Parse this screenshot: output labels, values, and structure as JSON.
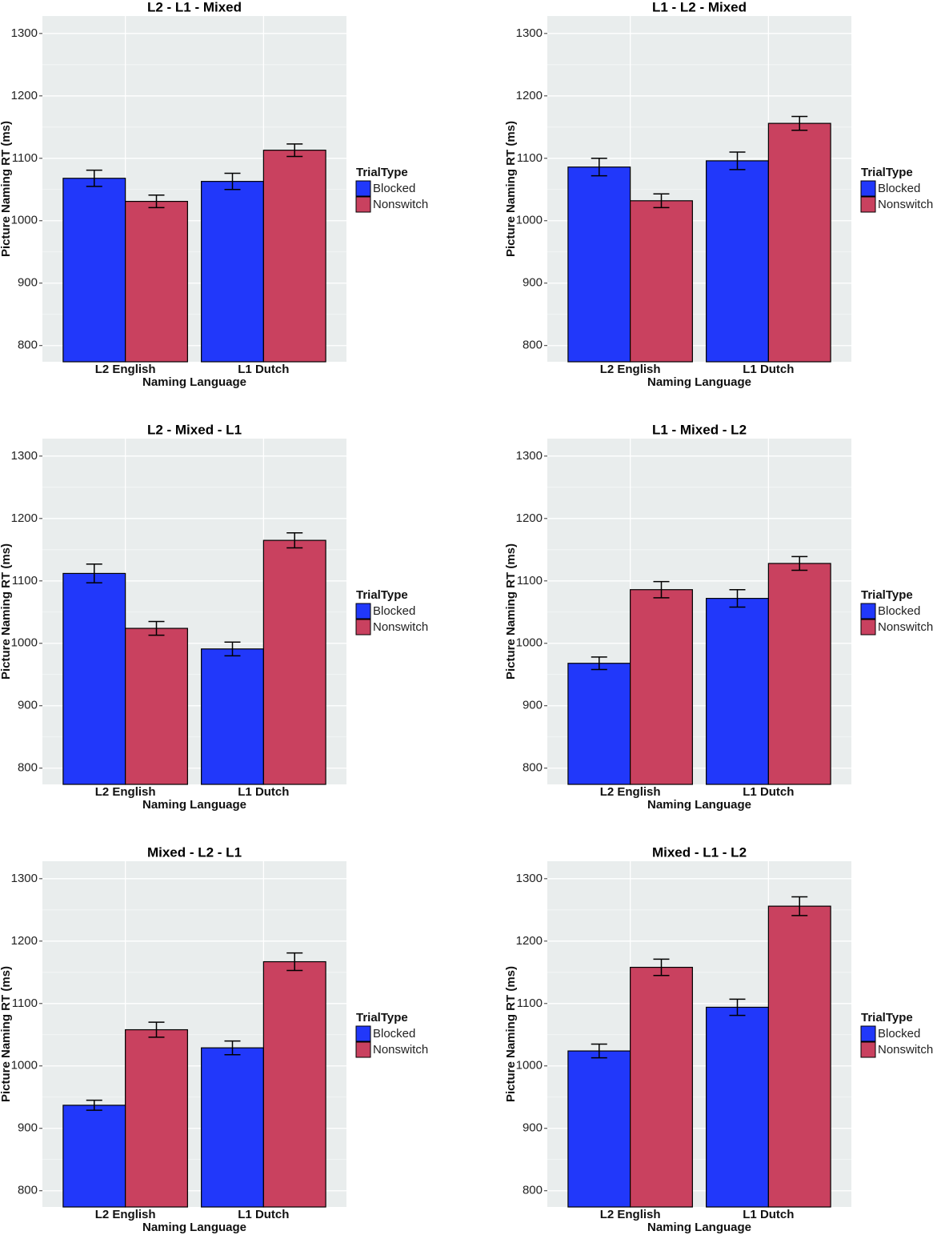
{
  "chart_data": [
    {
      "type": "bar",
      "title": "L2 - L1 - Mixed",
      "x_label": "Naming Language",
      "y_label": "Picture Naming RT (ms)",
      "legend_title": "TrialType",
      "categories": [
        "L2 English",
        "L1 Dutch"
      ],
      "series": [
        {
          "name": "Blocked",
          "color": "#2138fa",
          "values": [
            1068,
            1063
          ],
          "errors": [
            13,
            13
          ]
        },
        {
          "name": "Nonswitch",
          "color": "#c9415f",
          "values": [
            1031,
            1113
          ],
          "errors": [
            10,
            10
          ]
        }
      ],
      "ylim": [
        774,
        1328
      ],
      "yticks": [
        800,
        900,
        1000,
        1100,
        1200,
        1300
      ],
      "grid": true
    },
    {
      "type": "bar",
      "title": "L1 - L2 - Mixed",
      "x_label": "Naming Language",
      "y_label": "Picture Naming RT (ms)",
      "legend_title": "TrialType",
      "categories": [
        "L2 English",
        "L1 Dutch"
      ],
      "series": [
        {
          "name": "Blocked",
          "color": "#2138fa",
          "values": [
            1086,
            1096
          ],
          "errors": [
            14,
            14
          ]
        },
        {
          "name": "Nonswitch",
          "color": "#c9415f",
          "values": [
            1032,
            1156
          ],
          "errors": [
            11,
            11
          ]
        }
      ],
      "ylim": [
        774,
        1328
      ],
      "yticks": [
        800,
        900,
        1000,
        1100,
        1200,
        1300
      ],
      "grid": true
    },
    {
      "type": "bar",
      "title": "L2 - Mixed - L1",
      "x_label": "Naming Language",
      "y_label": "Picture Naming RT (ms)",
      "legend_title": "TrialType",
      "categories": [
        "L2 English",
        "L1 Dutch"
      ],
      "series": [
        {
          "name": "Blocked",
          "color": "#2138fa",
          "values": [
            1112,
            991
          ],
          "errors": [
            15,
            11
          ]
        },
        {
          "name": "Nonswitch",
          "color": "#c9415f",
          "values": [
            1024,
            1165
          ],
          "errors": [
            11,
            12
          ]
        }
      ],
      "ylim": [
        774,
        1328
      ],
      "yticks": [
        800,
        900,
        1000,
        1100,
        1200,
        1300
      ],
      "grid": true
    },
    {
      "type": "bar",
      "title": "L1 - Mixed - L2",
      "x_label": "Naming Language",
      "y_label": "Picture Naming RT (ms)",
      "legend_title": "TrialType",
      "categories": [
        "L2 English",
        "L1 Dutch"
      ],
      "series": [
        {
          "name": "Blocked",
          "color": "#2138fa",
          "values": [
            968,
            1072
          ],
          "errors": [
            10,
            14
          ]
        },
        {
          "name": "Nonswitch",
          "color": "#c9415f",
          "values": [
            1086,
            1128
          ],
          "errors": [
            13,
            11
          ]
        }
      ],
      "ylim": [
        774,
        1328
      ],
      "yticks": [
        800,
        900,
        1000,
        1100,
        1200,
        1300
      ],
      "grid": true
    },
    {
      "type": "bar",
      "title": "Mixed - L2 - L1",
      "x_label": "Naming Language",
      "y_label": "Picture Naming RT (ms)",
      "legend_title": "TrialType",
      "categories": [
        "L2 English",
        "L1 Dutch"
      ],
      "series": [
        {
          "name": "Blocked",
          "color": "#2138fa",
          "values": [
            937,
            1029
          ],
          "errors": [
            8,
            11
          ]
        },
        {
          "name": "Nonswitch",
          "color": "#c9415f",
          "values": [
            1058,
            1167
          ],
          "errors": [
            12,
            14
          ]
        }
      ],
      "ylim": [
        774,
        1328
      ],
      "yticks": [
        800,
        900,
        1000,
        1100,
        1200,
        1300
      ],
      "grid": true
    },
    {
      "type": "bar",
      "title": "Mixed - L1 - L2",
      "x_label": "Naming Language",
      "y_label": "Picture Naming RT (ms)",
      "legend_title": "TrialType",
      "categories": [
        "L2 English",
        "L1 Dutch"
      ],
      "series": [
        {
          "name": "Blocked",
          "color": "#2138fa",
          "values": [
            1024,
            1094
          ],
          "errors": [
            11,
            13
          ]
        },
        {
          "name": "Nonswitch",
          "color": "#c9415f",
          "values": [
            1158,
            1256
          ],
          "errors": [
            13,
            15
          ]
        }
      ],
      "ylim": [
        774,
        1328
      ],
      "yticks": [
        800,
        900,
        1000,
        1100,
        1200,
        1300
      ],
      "grid": true
    }
  ]
}
